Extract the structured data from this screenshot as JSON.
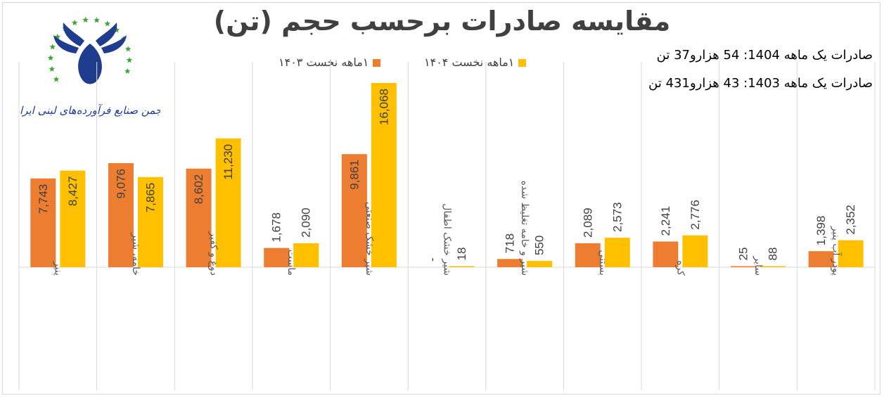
{
  "chart_data": {
    "type": "bar",
    "title": "مقایسه صادرات برحسب حجم (تن)",
    "categories": [
      "پنیر",
      "خامه، شیر",
      "دوغ و کفیر",
      "ماست",
      "شیر خشک صنعتی",
      "شیر خشک اطفال",
      "شیر و خامه تغلیظ شده",
      "بستنی",
      "کره",
      "سایر",
      "پودر آب پنیر"
    ],
    "series": [
      {
        "name": "۱ماهه نخست ۱۴۰۳",
        "values": [
          7743,
          9076,
          8602,
          1678,
          9861,
          0,
          718,
          2089,
          2241,
          25,
          1398
        ],
        "labels": [
          "7,743",
          "9,076",
          "8,602",
          "1,678",
          "9,861",
          "-",
          "718",
          "2,089",
          "2,241",
          "25",
          "1,398"
        ],
        "color": "#ed7d31"
      },
      {
        "name": "۱ماهه نخست ۱۴۰۴",
        "values": [
          8427,
          7865,
          11230,
          2090,
          16068,
          18,
          550,
          2573,
          2776,
          88,
          2352
        ],
        "labels": [
          "8,427",
          "7,865",
          "11,230",
          "2,090",
          "16,068",
          "18",
          "550",
          "2,573",
          "2,776",
          "88",
          "2,352"
        ],
        "color": "#ffc000"
      }
    ],
    "ylim": [
      0,
      16068
    ],
    "grid": "vertical category separators",
    "legend": "top"
  },
  "summary": {
    "line1": "صادرات یک ماهه 1404: 54 هزارو37 تن",
    "line2": "صادرات یک ماهه 1403: 43 هزارو431 تن"
  },
  "logo": {
    "caption": "انجمن صنایع فرآورده‌های لبنی ایران",
    "colors": {
      "blue": "#1f3c8f",
      "green": "#3fa535"
    }
  }
}
